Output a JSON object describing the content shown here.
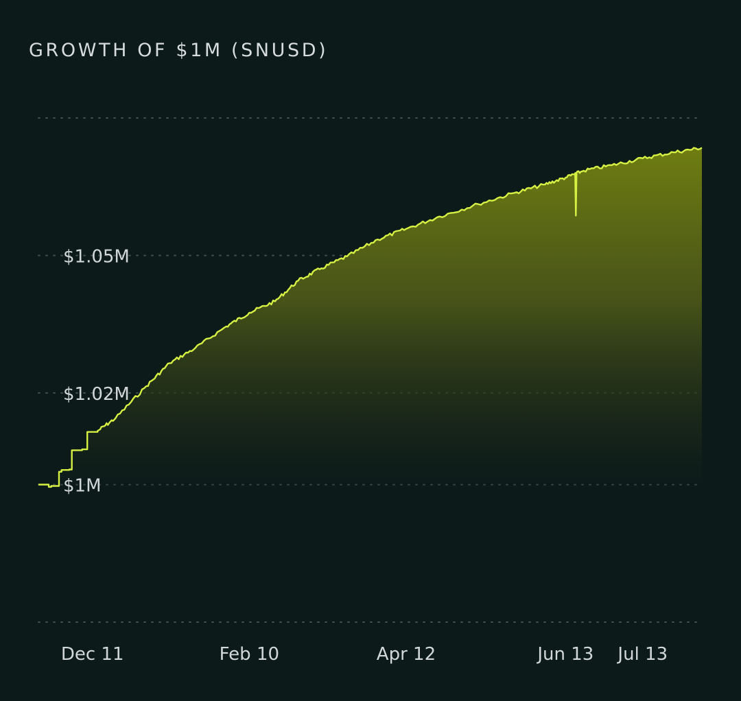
{
  "chart_data": {
    "type": "area",
    "title": "GROWTH OF $1M (SNUSD)",
    "xlabel": "",
    "ylabel": "",
    "x_ticks": [
      "Dec 11",
      "Feb 10",
      "Apr 12",
      "Jun 13",
      "Jul 13"
    ],
    "y_ticks": [
      {
        "value": 1.0,
        "label": "$1M"
      },
      {
        "value": 1.02,
        "label": "$1.02M"
      },
      {
        "value": 1.05,
        "label": "$1.05M"
      }
    ],
    "ylim": [
      0.97,
      1.08
    ],
    "grid": true,
    "legend": "none",
    "line_color": "#d6f044",
    "series": [
      {
        "x": [
          "Nov 20",
          "Nov 22",
          "Nov 24",
          "Nov 25",
          "Nov 28",
          "Nov 29",
          "Dec 2",
          "Dec 3",
          "Dec 7",
          "Dec 9",
          "Dec 13",
          "Dec 20",
          "Jan 1",
          "Jan 10",
          "Jan 20",
          "Feb 1",
          "Feb 10",
          "Feb 20",
          "Mar 1",
          "Mar 10",
          "Mar 20",
          "Apr 1",
          "Apr 12",
          "Apr 25",
          "May 10",
          "May 25",
          "Jun 5",
          "Jun 13",
          "Jun 20",
          "Jul 1",
          "Jul 13",
          "Jul 25",
          "Aug 5"
        ],
        "values": [
          1.0,
          1.0,
          0.9995,
          0.9997,
          1.0028,
          1.0032,
          1.0033,
          1.0075,
          1.0077,
          1.0115,
          1.0117,
          1.0145,
          1.0215,
          1.0265,
          1.0298,
          1.0345,
          1.0375,
          1.04,
          1.0445,
          1.0472,
          1.0498,
          1.0535,
          1.0558,
          1.0585,
          1.0612,
          1.0638,
          1.0655,
          1.067,
          1.0685,
          1.0697,
          1.0712,
          1.0725,
          1.0735
        ]
      }
    ]
  }
}
